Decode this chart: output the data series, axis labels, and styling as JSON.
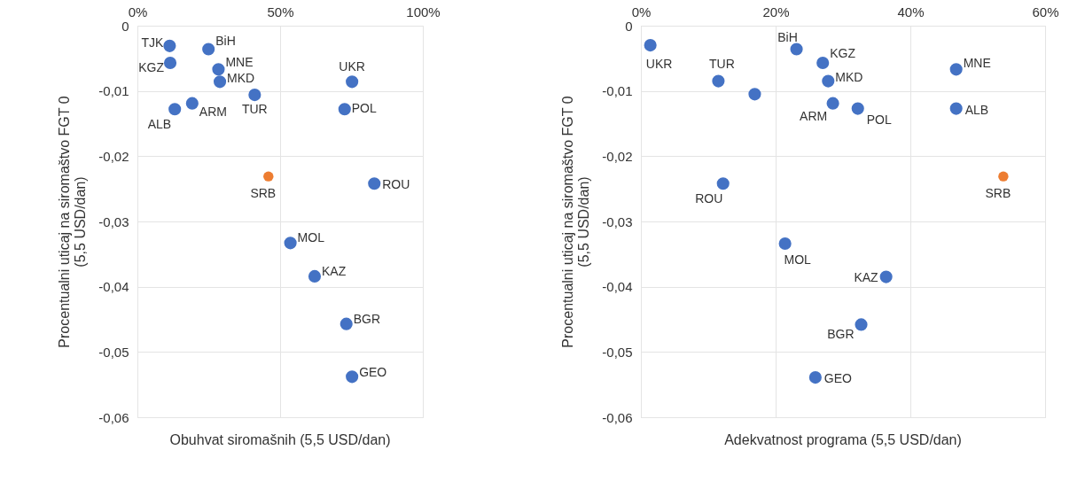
{
  "chart_data": [
    {
      "type": "scatter",
      "xlabel": "Obuhvat siromašnih (5,5 USD/dan)",
      "ylabel": "Procentualni uticaj na siromaštvo FGT 0\n(5,5 USD/dan)",
      "marker": "circle",
      "grid": true,
      "xlim": [
        0,
        100
      ],
      "xticks": [
        {
          "value": 0,
          "label": "0%"
        },
        {
          "value": 50,
          "label": "50%"
        },
        {
          "value": 100,
          "label": "100%"
        }
      ],
      "ylim": [
        -0.06,
        0
      ],
      "yticks": [
        {
          "value": 0,
          "label": "0"
        },
        {
          "value": -0.01,
          "label": "-0,01"
        },
        {
          "value": -0.02,
          "label": "-0,02"
        },
        {
          "value": -0.03,
          "label": "-0,03"
        },
        {
          "value": -0.04,
          "label": "-0,04"
        },
        {
          "value": -0.05,
          "label": "-0,05"
        },
        {
          "value": -0.06,
          "label": "-0,06"
        }
      ],
      "series": [
        {
          "color": "#4472c4",
          "x": [
            11.3,
            11.5,
            24.9,
            28.4,
            28.9,
            41.1,
            75.2,
            72.6,
            13.1,
            19.2,
            83.0,
            53.6,
            62.1,
            73.2,
            75.2
          ],
          "values": [
            -0.0031,
            -0.0057,
            -0.0036,
            -0.0067,
            -0.0086,
            -0.0106,
            -0.0086,
            -0.0128,
            -0.0128,
            -0.0119,
            -0.0242,
            -0.0333,
            -0.0384,
            -0.0457,
            -0.0538
          ]
        },
        {
          "color": "#ed7d31",
          "x": [
            45.9
          ],
          "values": [
            -0.0231
          ]
        }
      ],
      "annotations": [
        {
          "text": "TJK",
          "x": 11.3,
          "y": -0.0031
        },
        {
          "text": "KGZ",
          "x": 11.5,
          "y": -0.0057
        },
        {
          "text": "BiH",
          "x": 24.9,
          "y": -0.0036
        },
        {
          "text": "MNE",
          "x": 28.4,
          "y": -0.0067
        },
        {
          "text": "MKD",
          "x": 28.9,
          "y": -0.0086
        },
        {
          "text": "TUR",
          "x": 41.1,
          "y": -0.0106
        },
        {
          "text": "UKR",
          "x": 75.2,
          "y": -0.0086
        },
        {
          "text": "POL",
          "x": 72.6,
          "y": -0.0128
        },
        {
          "text": "ALB",
          "x": 13.1,
          "y": -0.0128
        },
        {
          "text": "ARM",
          "x": 19.2,
          "y": -0.0119
        },
        {
          "text": "SRB",
          "x": 45.9,
          "y": -0.0231
        },
        {
          "text": "ROU",
          "x": 83.0,
          "y": -0.0242
        },
        {
          "text": "MOL",
          "x": 53.6,
          "y": -0.0333
        },
        {
          "text": "KAZ",
          "x": 62.1,
          "y": -0.0384
        },
        {
          "text": "BGR",
          "x": 73.2,
          "y": -0.0457
        },
        {
          "text": "GEO",
          "x": 75.2,
          "y": -0.0538
        }
      ]
    },
    {
      "type": "scatter",
      "xlabel": "Adekvatnost programa (5,5 USD/dan)",
      "ylabel": "Procentualni uticaj na siromaštvo FGT 0\n(5,5 USD/dan)",
      "marker": "circle",
      "grid": true,
      "xlim": [
        0,
        60
      ],
      "xticks": [
        {
          "value": 0,
          "label": "0%"
        },
        {
          "value": 20,
          "label": "20%"
        },
        {
          "value": 40,
          "label": "40%"
        },
        {
          "value": 60,
          "label": "60%"
        }
      ],
      "ylim": [
        -0.06,
        0
      ],
      "yticks": [
        {
          "value": 0,
          "label": "0"
        },
        {
          "value": -0.01,
          "label": "-0,01"
        },
        {
          "value": -0.02,
          "label": "-0,02"
        },
        {
          "value": -0.03,
          "label": "-0,03"
        },
        {
          "value": -0.04,
          "label": "-0,04"
        },
        {
          "value": -0.05,
          "label": "-0,05"
        },
        {
          "value": -0.06,
          "label": "-0,06"
        }
      ],
      "series": [
        {
          "color": "#4472c4",
          "x": [
            1.4,
            11.5,
            16.9,
            23.1,
            27.0,
            27.8,
            46.8,
            28.5,
            32.2,
            46.8,
            12.2,
            21.4,
            36.4,
            32.7,
            25.9
          ],
          "values": [
            -0.003,
            -0.0085,
            -0.0105,
            -0.0036,
            -0.0057,
            -0.0085,
            -0.0067,
            -0.0119,
            -0.0127,
            -0.0127,
            -0.0242,
            -0.0334,
            -0.0385,
            -0.0458,
            -0.0539
          ]
        },
        {
          "color": "#ed7d31",
          "x": [
            53.8
          ],
          "values": [
            -0.0231
          ]
        }
      ],
      "annotations": [
        {
          "text": "UKR",
          "x": 1.4,
          "y": -0.003
        },
        {
          "text": "TUR",
          "x": 11.5,
          "y": -0.0085
        },
        {
          "text": "BiH",
          "x": 23.1,
          "y": -0.0036
        },
        {
          "text": "KGZ",
          "x": 27.0,
          "y": -0.0057
        },
        {
          "text": "MKD",
          "x": 27.8,
          "y": -0.0085
        },
        {
          "text": "MNE",
          "x": 46.8,
          "y": -0.0067
        },
        {
          "text": "ARM",
          "x": 28.5,
          "y": -0.0119
        },
        {
          "text": "POL",
          "x": 32.2,
          "y": -0.0127
        },
        {
          "text": "ALB",
          "x": 46.8,
          "y": -0.0127
        },
        {
          "text": "ROU",
          "x": 12.2,
          "y": -0.0242
        },
        {
          "text": "SRB",
          "x": 53.8,
          "y": -0.0231
        },
        {
          "text": "MOL",
          "x": 21.4,
          "y": -0.0334
        },
        {
          "text": "KAZ",
          "x": 36.4,
          "y": -0.0385
        },
        {
          "text": "BGR",
          "x": 32.7,
          "y": -0.0458
        },
        {
          "text": "GEO",
          "x": 25.9,
          "y": -0.0539
        }
      ]
    }
  ]
}
